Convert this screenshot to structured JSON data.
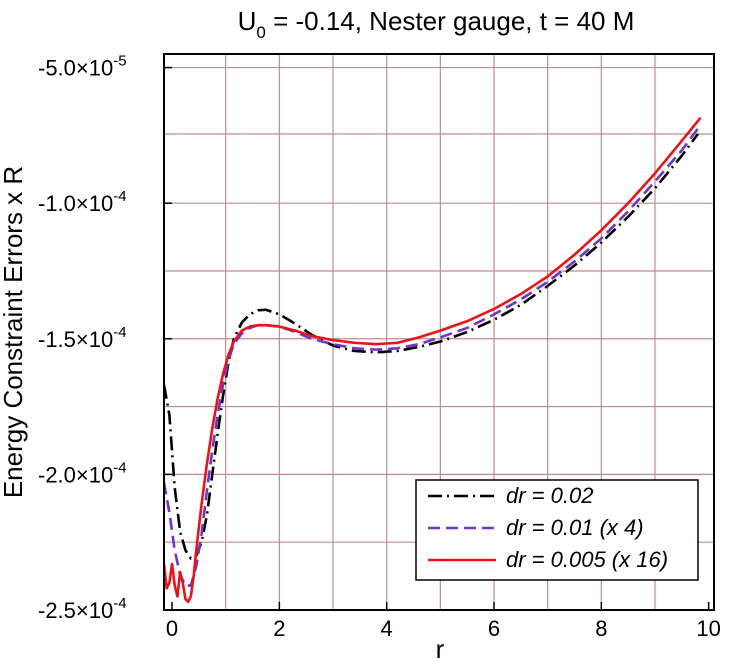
{
  "chart_data": {
    "type": "line",
    "title": "U",
    "title_sub": "0",
    "title_rest": " = -0.14, Nester gauge, t = 40 M",
    "xlabel": "r",
    "ylabel": "Energy Constraint Errors x R",
    "xlim": [
      -0.15,
      10.1
    ],
    "ylim": [
      -0.00025,
      -4.5e-05
    ],
    "grid": true,
    "legend_position": "bottom-right",
    "x_ticks": [
      {
        "value": 0,
        "label": "0"
      },
      {
        "value": 2,
        "label": "2"
      },
      {
        "value": 4,
        "label": "4"
      },
      {
        "value": 6,
        "label": "6"
      },
      {
        "value": 8,
        "label": "8"
      },
      {
        "value": 10,
        "label": "10"
      }
    ],
    "y_ticks": [
      {
        "value": -5e-05,
        "mant": "-5.0×10",
        "exp": "-5"
      },
      {
        "value": -0.0001,
        "mant": "-1.0×10",
        "exp": "-4"
      },
      {
        "value": -0.00015,
        "mant": "-1.5×10",
        "exp": "-4"
      },
      {
        "value": -0.0002,
        "mant": "-2.0×10",
        "exp": "-4"
      },
      {
        "value": -0.00025,
        "mant": "-2.5×10",
        "exp": "-4"
      }
    ],
    "grid_x": [
      1,
      2,
      3,
      4,
      5,
      6,
      7,
      8,
      9
    ],
    "grid_y": [
      -5e-05,
      -7.45e-05,
      -0.0001,
      -0.000125,
      -0.00015,
      -0.000175,
      -0.0002,
      -0.000225
    ],
    "series": [
      {
        "name": "dr = 0.02",
        "color": "#000000",
        "dash": "14,5,2,5",
        "x": [
          -0.15,
          -0.05,
          0.05,
          0.15,
          0.25,
          0.35,
          0.45,
          0.55,
          0.65,
          0.75,
          0.85,
          0.95,
          1.05,
          1.15,
          1.3,
          1.45,
          1.6,
          1.75,
          2.0,
          2.3,
          2.6,
          3.0,
          3.4,
          3.8,
          4.2,
          4.6,
          5.0,
          5.5,
          6.0,
          6.5,
          7.0,
          7.5,
          8.0,
          8.5,
          9.0,
          9.5,
          9.8
        ],
        "y": [
          -0.000167,
          -0.000178,
          -0.000205,
          -0.000221,
          -0.000228,
          -0.000231,
          -0.00023,
          -0.000225,
          -0.000215,
          -0.0002,
          -0.000185,
          -0.000171,
          -0.000159,
          -0.00015,
          -0.000144,
          -0.000141,
          -0.0001395,
          -0.0001393,
          -0.000141,
          -0.0001445,
          -0.0001485,
          -0.0001525,
          -0.0001545,
          -0.000155,
          -0.0001545,
          -0.000153,
          -0.000151,
          -0.0001475,
          -0.000143,
          -0.0001375,
          -0.0001305,
          -0.000123,
          -0.0001145,
          -0.000105,
          -9.45e-05,
          -8.25e-05,
          -7.45e-05
        ]
      },
      {
        "name": "dr = 0.01 (x 4)",
        "color": "#6f35c8",
        "dash": "12,6",
        "x": [
          -0.15,
          -0.05,
          0.05,
          0.15,
          0.25,
          0.35,
          0.45,
          0.55,
          0.65,
          0.75,
          0.85,
          0.95,
          1.05,
          1.15,
          1.3,
          1.45,
          1.6,
          1.75,
          2.0,
          2.3,
          2.6,
          3.0,
          3.4,
          3.8,
          4.2,
          4.6,
          5.0,
          5.5,
          6.0,
          6.5,
          7.0,
          7.5,
          8.0,
          8.5,
          9.0,
          9.5,
          9.8
        ],
        "y": [
          -0.000203,
          -0.000214,
          -0.000228,
          -0.000237,
          -0.000241,
          -0.000241,
          -0.000234,
          -0.000222,
          -0.000206,
          -0.000191,
          -0.000178,
          -0.000167,
          -0.000158,
          -0.000152,
          -0.000148,
          -0.000146,
          -0.000145,
          -0.000145,
          -0.0001455,
          -0.0001475,
          -0.00015,
          -0.000152,
          -0.0001535,
          -0.000154,
          -0.0001535,
          -0.000152,
          -0.0001495,
          -0.000146,
          -0.000141,
          -0.0001355,
          -0.000129,
          -0.0001215,
          -0.000113,
          -0.000103,
          -9.2e-05,
          -8.05e-05,
          -7.25e-05
        ]
      },
      {
        "name": "dr = 0.005 (x 16)",
        "color": "#e8141c",
        "dash": "",
        "x": [
          -0.15,
          -0.1,
          -0.05,
          0.0,
          0.05,
          0.1,
          0.15,
          0.2,
          0.25,
          0.3,
          0.35,
          0.4,
          0.45,
          0.55,
          0.65,
          0.75,
          0.85,
          0.95,
          1.05,
          1.15,
          1.3,
          1.45,
          1.6,
          1.75,
          2.0,
          2.3,
          2.6,
          3.0,
          3.4,
          3.8,
          4.2,
          4.6,
          5.0,
          5.5,
          6.0,
          6.5,
          7.0,
          7.5,
          8.0,
          8.5,
          9.0,
          9.5,
          9.85
        ],
        "y": [
          -0.000233,
          -0.000242,
          -0.00024,
          -0.000233,
          -0.000241,
          -0.000245,
          -0.000236,
          -0.00024,
          -0.000246,
          -0.000247,
          -0.000245,
          -0.000238,
          -0.000228,
          -0.000211,
          -0.000196,
          -0.000183,
          -0.000172,
          -0.000163,
          -0.000156,
          -0.000151,
          -0.000147,
          -0.0001455,
          -0.000145,
          -0.000145,
          -0.0001455,
          -0.000147,
          -0.000149,
          -0.0001505,
          -0.0001515,
          -0.000152,
          -0.0001515,
          -0.0001495,
          -0.000147,
          -0.0001435,
          -0.000139,
          -0.0001335,
          -0.000127,
          -0.000119,
          -0.00011,
          -0.0001,
          -8.9e-05,
          -7.7e-05,
          -6.85e-05
        ]
      }
    ]
  }
}
